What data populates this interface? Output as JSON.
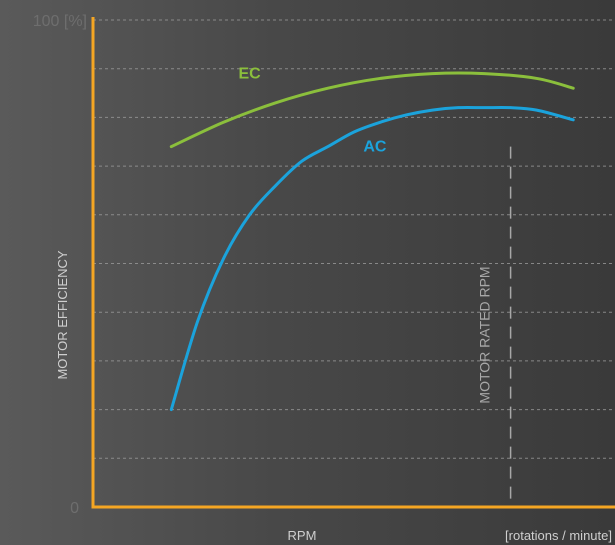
{
  "chart_data": {
    "type": "line",
    "title": "",
    "ylabel": "MOTOR EFFICIENCY",
    "xlabel": "RPM",
    "x_unit": "[rotations / minute]",
    "y_tick_labels": {
      "top": "100 [%]",
      "bottom": "0"
    },
    "ylim": [
      0,
      100
    ],
    "xlim": [
      0,
      100
    ],
    "grid": true,
    "series": [
      {
        "name": "EC",
        "color": "#8bbf3c",
        "x": [
          15,
          25,
          35,
          45,
          55,
          65,
          75,
          85,
          92
        ],
        "y": [
          74,
          79,
          83,
          86,
          88,
          89,
          89,
          88,
          86
        ]
      },
      {
        "name": "AC",
        "color": "#1ba3dc",
        "x": [
          15,
          20,
          25,
          30,
          35,
          40,
          45,
          50,
          55,
          60,
          65,
          70,
          75,
          80,
          85,
          92
        ],
        "y": [
          20,
          38,
          51,
          60,
          66,
          71,
          74,
          77,
          79,
          80.5,
          81.5,
          82,
          82,
          82,
          81.5,
          79.5
        ]
      }
    ],
    "annotations": [
      {
        "label": "MOTOR RATED RPM",
        "x": 80,
        "style": "dashed-vertical",
        "y_top": 74
      }
    ],
    "colors": {
      "axis": "#f5a623",
      "grid": "#9a9a9a",
      "tick_text": "#6e6e6e",
      "label_text": "#cfcfcf",
      "marker_line": "#a8a8a8"
    }
  }
}
